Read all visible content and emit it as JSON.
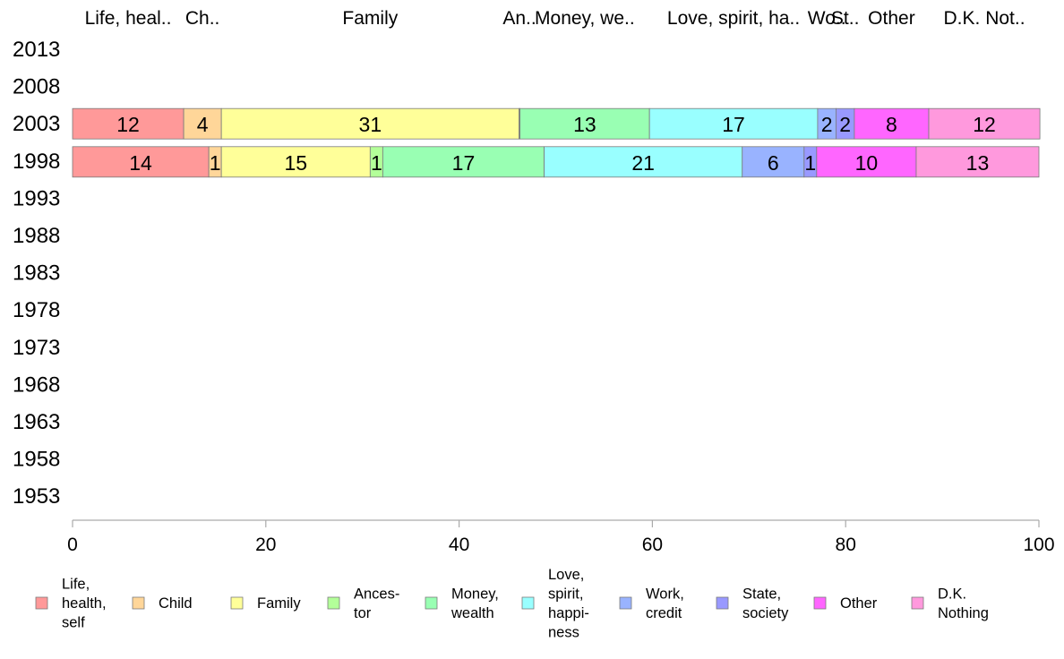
{
  "chart_data": {
    "type": "bar",
    "orientation": "horizontal-stacked",
    "years": [
      "2013",
      "2008",
      "2003",
      "1998",
      "1993",
      "1988",
      "1983",
      "1978",
      "1973",
      "1968",
      "1963",
      "1958",
      "1953"
    ],
    "top_labels": [
      "Life, heal..",
      "Ch..",
      "Family",
      "An..",
      "Money, we..",
      "Love, spirit, ha..",
      "Wo..",
      "St..",
      "Other",
      "D.K. Not.."
    ],
    "legend": [
      {
        "lines": [
          "Life,",
          "health,",
          "self"
        ],
        "color": "#ff9999"
      },
      {
        "lines": [
          "Child"
        ],
        "color": "#ffd699"
      },
      {
        "lines": [
          "Family"
        ],
        "color": "#ffff99"
      },
      {
        "lines": [
          "Ances-",
          "tor"
        ],
        "color": "#b3ff99"
      },
      {
        "lines": [
          "Money,",
          "wealth"
        ],
        "color": "#99ffb3"
      },
      {
        "lines": [
          "Love,",
          "spirit,",
          "happi-",
          "ness"
        ],
        "color": "#99ffff"
      },
      {
        "lines": [
          "Work,",
          "credit"
        ],
        "color": "#99b3ff"
      },
      {
        "lines": [
          "State,",
          "society"
        ],
        "color": "#9999ff"
      },
      {
        "lines": [
          "Other"
        ],
        "color": "#ff66ff"
      },
      {
        "lines": [
          "D.K.",
          "Nothing"
        ],
        "color": "#ff99dd"
      }
    ],
    "series_values": {
      "2003": [
        11.5,
        3.9,
        30.8,
        0.1,
        13.4,
        17.4,
        1.9,
        1.9,
        7.7,
        11.5
      ],
      "1998": [
        14.1,
        1.3,
        15.4,
        1.3,
        16.7,
        20.5,
        6.4,
        1.3,
        10.3,
        12.7
      ]
    },
    "labels": {
      "2003": [
        "12",
        "4",
        "31",
        "",
        "13",
        "17",
        "2",
        "2",
        "8",
        "12"
      ],
      "1998": [
        "14",
        "1",
        "15",
        "1",
        "17",
        "21",
        "6",
        "1",
        "10",
        "13"
      ]
    },
    "x_ticks": [
      "0",
      "20",
      "40",
      "60",
      "80",
      "100"
    ],
    "xlim": [
      0,
      100
    ]
  }
}
